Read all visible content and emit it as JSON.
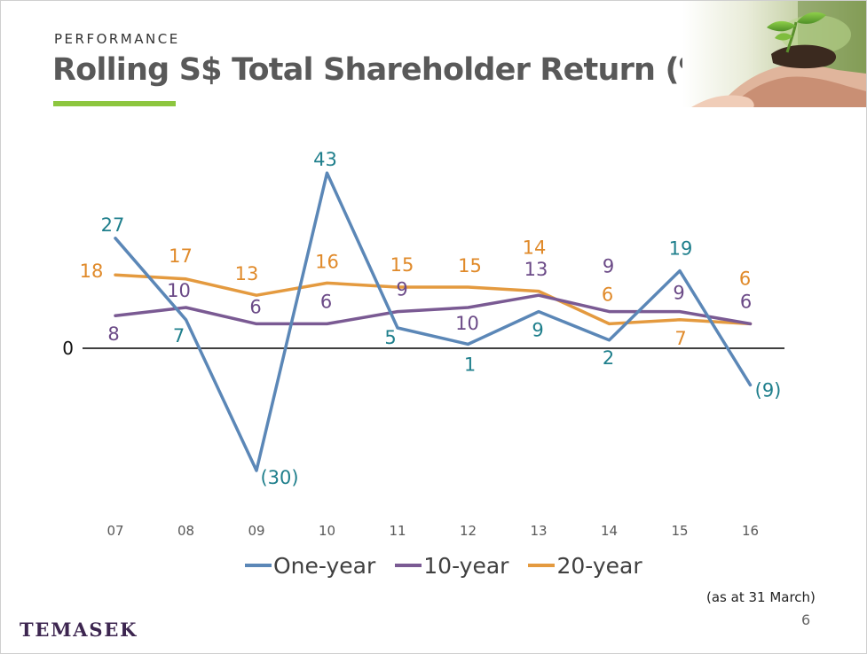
{
  "header": {
    "kicker": "PERFORMANCE",
    "title": "Rolling S$ Total Shareholder Return (%)"
  },
  "footer": {
    "note": "(as at 31 March)",
    "page_number": "6",
    "logo_text": "TEMASEK"
  },
  "colors": {
    "one_year": "#5b87b7",
    "ten_year": "#7a5a93",
    "twenty_year": "#e49a3f",
    "one_year_label": "#1f7f8c",
    "ten_year_label": "#6b4a87",
    "twenty_year_label": "#e08a2a",
    "accent_rule": "#8dc63f"
  },
  "icons": {
    "photo": "hands-holding-seedling-photo"
  },
  "chart_data": {
    "type": "line",
    "categories": [
      "07",
      "08",
      "09",
      "10",
      "11",
      "12",
      "13",
      "14",
      "15",
      "16"
    ],
    "zero_label": "0",
    "series": [
      {
        "key": "one_year",
        "name": "One-year",
        "values": [
          27,
          7,
          -30,
          43,
          5,
          1,
          9,
          2,
          19,
          -9
        ],
        "labels": [
          "27",
          "7",
          "(30)",
          "43",
          "5",
          "1",
          "9",
          "2",
          "19",
          "(9)"
        ]
      },
      {
        "key": "ten_year",
        "name": "10-year",
        "values": [
          8,
          10,
          6,
          6,
          9,
          10,
          13,
          9,
          9,
          6
        ],
        "labels": [
          "8",
          "10",
          "6",
          "6",
          "9",
          "10",
          "13",
          "9",
          "9",
          "6"
        ]
      },
      {
        "key": "twenty_year",
        "name": "20-year",
        "values": [
          18,
          17,
          13,
          16,
          15,
          15,
          14,
          6,
          7,
          6
        ],
        "labels": [
          "18",
          "17",
          "13",
          "16",
          "15",
          "15",
          "14",
          "6",
          "7",
          "6"
        ]
      }
    ],
    "ylim": [
      -30,
      43
    ],
    "grid": false,
    "legend_position": "bottom"
  }
}
